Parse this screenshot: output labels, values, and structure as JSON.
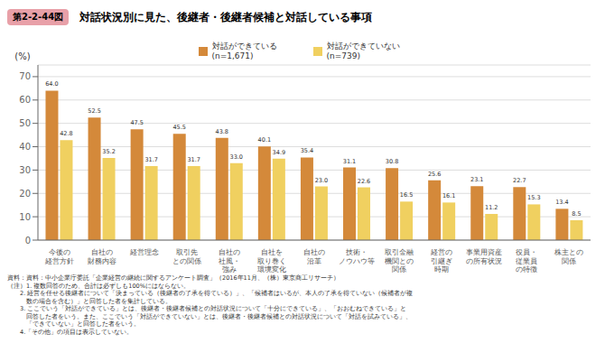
{
  "chart_data": {
    "type": "bar",
    "title": "対話状況別に見た、後継者・後継者候補と対話している事項",
    "fig_label": "第2-2-44図",
    "fig_label_color": "#E8A0A8",
    "ylabel": "(%)",
    "categories": [
      "今後の\n経営方針",
      "自社の\n財務内容",
      "経営理念",
      "取引先\nとの関係",
      "自社の\n社風・\n強み",
      "自社を\n取り巻く\n環境変化",
      "自社の\n沿革",
      "技術・\nノウハウ等",
      "取引金融\n機関との\n関係",
      "経営の\n引継ぎ\n時期",
      "事業用資産\nの所有状況",
      "役員・\n従業員\nの特徴",
      "株主との\n関係"
    ],
    "series": [
      {
        "name": "対話ができている\n(n=1,671)",
        "color": "#D4893A",
        "values": [
          64.0,
          52.5,
          47.5,
          45.5,
          43.8,
          40.1,
          35.4,
          31.1,
          30.8,
          25.6,
          23.1,
          22.7,
          13.4
        ],
        "value_labels": [
          "64.0",
          "52.5",
          "47.5",
          "45.5",
          "43.8",
          "40.1",
          "35.4",
          "31.1",
          "30.8",
          "25.6",
          "23.1",
          "22.7",
          "13.4"
        ]
      },
      {
        "name": "対話ができていない\n(n=739)",
        "color": "#F0D060",
        "values": [
          42.8,
          35.2,
          31.7,
          31.7,
          33.0,
          34.9,
          23.0,
          22.6,
          16.5,
          16.1,
          11.2,
          15.3,
          8.5
        ],
        "value_labels": [
          "42.8",
          "35.2",
          "31.7",
          "31.7",
          "33.0",
          "34.9",
          "23.0",
          "22.6",
          "16.5",
          "16.1",
          "11.2",
          "15.3",
          "8.5"
        ]
      }
    ],
    "ylim": [
      0,
      75
    ],
    "yticks": [
      0,
      10,
      20,
      30,
      40,
      50,
      60,
      70
    ],
    "grid": true,
    "legend": "top",
    "data_labels": true,
    "footnotes": [
      "資料：資料：中小企業庁委託「企業経営の継続に関するアンケート調査」（2016年11月、（株）東京商工リサーチ）",
      "（注）1. 複数回答のため、合計は必ずしも100%にはならない。",
      "　　2. 経営を任せる後継者について「決まっている（後継者の了承を得ている）」、「候補者はいるが、本人の了承を得ていない（候補者が複",
      "　　　数の場合を含む）」と回答した者を集計している。",
      "　　3. ここでいう「対話ができている」とは、後継者・後継者候補との対話状況について「十分にできている」、「おおむねできている」と",
      "　　　回答した者をいう。また、ここでいう「対話ができていない」とは、後継者・後継者候補との対話状況について「対話を試みている」、",
      "　　　「できていない」と回答した者をいう。",
      "　　4.「その他」の項目は表示していない。"
    ]
  }
}
